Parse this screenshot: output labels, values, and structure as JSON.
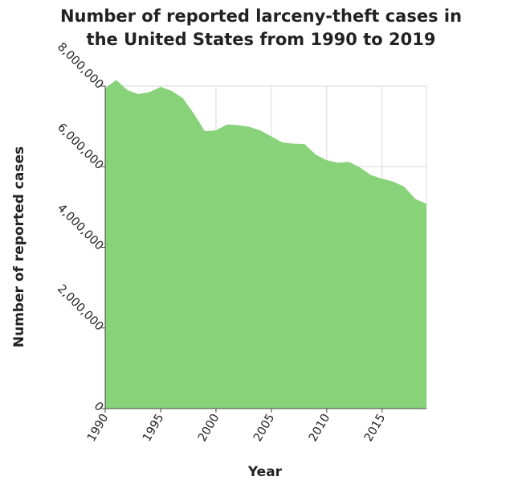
{
  "chart_data": {
    "type": "area",
    "title_lines": [
      "Number of reported larceny-theft cases in",
      "the United States from 1990 to 2019"
    ],
    "xlabel": "Year",
    "ylabel": "Number of reported cases",
    "xlim": [
      1990,
      2019
    ],
    "ylim": [
      0,
      8000000
    ],
    "x_ticks": [
      1990,
      1995,
      2000,
      2005,
      2010,
      2015
    ],
    "y_ticks": [
      0,
      2000000,
      4000000,
      6000000,
      8000000
    ],
    "x_tick_labels": [
      "1990",
      "1995",
      "2000",
      "2005",
      "2010",
      "2015"
    ],
    "y_tick_labels": [
      "0",
      "2,000,000",
      "4,000,000",
      "6,000,000",
      "8,000,000"
    ],
    "grid": true,
    "fill_color": "#88d27a",
    "series": [
      {
        "x": [
          1990,
          1991,
          1992,
          1993,
          1994,
          1995,
          1996,
          1997,
          1998,
          1999,
          2000,
          2001,
          2002,
          2003,
          2004,
          2005,
          2006,
          2007,
          2008,
          2009,
          2010,
          2011,
          2012,
          2013,
          2014,
          2015,
          2016,
          2017,
          2018,
          2019
        ],
        "values": [
          7950000,
          8150000,
          7900000,
          7800000,
          7850000,
          7980000,
          7880000,
          7700000,
          7320000,
          6880000,
          6900000,
          7050000,
          7030000,
          6990000,
          6900000,
          6750000,
          6600000,
          6570000,
          6560000,
          6300000,
          6160000,
          6100000,
          6120000,
          5980000,
          5790000,
          5700000,
          5630000,
          5500000,
          5200000,
          5080000
        ]
      }
    ]
  }
}
